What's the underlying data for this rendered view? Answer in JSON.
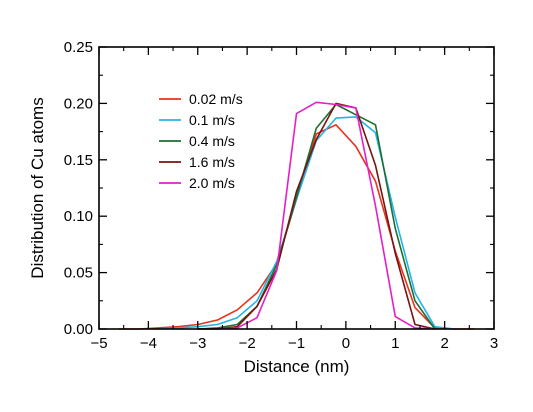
{
  "chart_data": {
    "type": "line",
    "title": "",
    "xlabel": "Distance (nm)",
    "ylabel": "Distribution of Cu atoms",
    "xlim": [
      -5,
      3
    ],
    "ylim": [
      0,
      0.25
    ],
    "xticks": [
      -5,
      -4,
      -3,
      -2,
      -1,
      0,
      1,
      2,
      3
    ],
    "xtick_labels": [
      "−5",
      "−4",
      "−3",
      "−2",
      "−1",
      "0",
      "1",
      "2",
      "3"
    ],
    "yticks": [
      0,
      0.05,
      0.1,
      0.15,
      0.2,
      0.25
    ],
    "ytick_labels": [
      "0.00",
      "0.05",
      "0.10",
      "0.15",
      "0.20",
      "0.25"
    ],
    "grid": false,
    "legend_position": "top-left",
    "series": [
      {
        "name": "0.02 m/s",
        "color": "#e8321e",
        "x": [
          -4.6,
          -4.2,
          -3.8,
          -3.4,
          -3.0,
          -2.6,
          -2.2,
          -1.8,
          -1.4,
          -1.0,
          -0.6,
          -0.2,
          0.2,
          0.6,
          1.0,
          1.4,
          1.8,
          2.2,
          2.6
        ],
        "y": [
          0.0,
          0.0,
          0.001,
          0.002,
          0.004,
          0.008,
          0.017,
          0.032,
          0.058,
          0.115,
          0.173,
          0.181,
          0.162,
          0.131,
          0.069,
          0.019,
          0.001,
          0.0,
          0.0
        ]
      },
      {
        "name": "0.1 m/s",
        "color": "#22b4e6",
        "x": [
          -3.8,
          -3.4,
          -3.0,
          -2.6,
          -2.2,
          -1.8,
          -1.4,
          -1.0,
          -0.6,
          -0.2,
          0.2,
          0.6,
          1.0,
          1.4,
          1.8,
          2.2
        ],
        "y": [
          0.0,
          0.001,
          0.002,
          0.004,
          0.01,
          0.025,
          0.06,
          0.115,
          0.167,
          0.187,
          0.188,
          0.174,
          0.099,
          0.032,
          0.002,
          0.0
        ]
      },
      {
        "name": "0.4 m/s",
        "color": "#1e6e32",
        "x": [
          -3.0,
          -2.6,
          -2.2,
          -1.8,
          -1.4,
          -1.0,
          -0.6,
          -0.2,
          0.2,
          0.6,
          1.0,
          1.4,
          1.8
        ],
        "y": [
          0.0,
          0.001,
          0.004,
          0.02,
          0.057,
          0.117,
          0.178,
          0.199,
          0.19,
          0.181,
          0.089,
          0.025,
          0.0
        ]
      },
      {
        "name": "1.6 m/s",
        "color": "#78140f",
        "x": [
          -3.0,
          -2.6,
          -2.2,
          -1.8,
          -1.4,
          -1.0,
          -0.6,
          -0.2,
          0.2,
          0.6,
          1.0,
          1.4,
          1.8
        ],
        "y": [
          0.0,
          0.0,
          0.002,
          0.02,
          0.053,
          0.122,
          0.168,
          0.2,
          0.196,
          0.145,
          0.067,
          0.004,
          0.0
        ]
      },
      {
        "name": "2.0 m/s",
        "color": "#e61ec8",
        "x": [
          -2.6,
          -2.2,
          -1.8,
          -1.4,
          -1.0,
          -0.6,
          -0.2,
          0.2,
          0.6,
          1.0,
          1.4,
          1.8
        ],
        "y": [
          0.0,
          0.001,
          0.01,
          0.052,
          0.191,
          0.201,
          0.199,
          0.196,
          0.109,
          0.011,
          0.001,
          0.0
        ]
      }
    ]
  }
}
